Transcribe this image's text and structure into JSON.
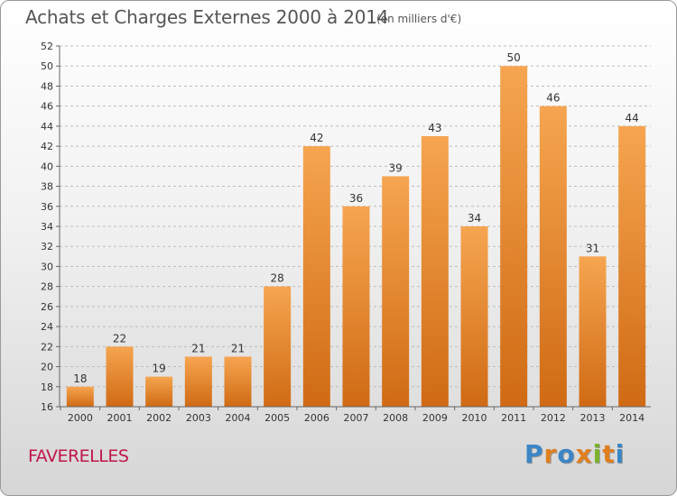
{
  "header": {
    "title": "Achats et Charges Externes 2000 à 2014",
    "subtitle": "(en milliers d'€)"
  },
  "footer": {
    "place": "FAVERELLES",
    "logo_text": "Proxiti",
    "logo_colors": [
      "#3b86c6",
      "#e07f1f",
      "#3b86c6",
      "#e07f1f",
      "#7cb32b",
      "#e07f1f",
      "#3b86c6"
    ]
  },
  "chart_data": {
    "type": "bar",
    "categories": [
      "2000",
      "2001",
      "2002",
      "2003",
      "2004",
      "2005",
      "2006",
      "2007",
      "2008",
      "2009",
      "2010",
      "2011",
      "2012",
      "2013",
      "2014"
    ],
    "values": [
      18,
      22,
      19,
      21,
      21,
      28,
      42,
      36,
      39,
      43,
      34,
      50,
      46,
      31,
      44
    ],
    "data_labels": [
      "18",
      "22",
      "19",
      "21",
      "21",
      "28",
      "42",
      "36",
      "39",
      "43",
      "34",
      "50",
      "46",
      "31",
      "44"
    ],
    "title": "Achats et Charges Externes 2000 à 2014",
    "subtitle": "(en milliers d'€)",
    "ylim": [
      16,
      52
    ],
    "yticks": [
      16,
      18,
      20,
      22,
      24,
      26,
      28,
      30,
      32,
      34,
      36,
      38,
      40,
      42,
      44,
      46,
      48,
      50,
      52
    ],
    "ytick_labels": [
      "16",
      "18",
      "20",
      "22",
      "24",
      "26",
      "28",
      "30",
      "32",
      "34",
      "36",
      "38",
      "40",
      "42",
      "44",
      "46",
      "48",
      "50",
      "52"
    ],
    "grid": "horizontal-dashed",
    "bar_color_top": "#f6a550",
    "bar_color_bottom": "#d06a14"
  }
}
